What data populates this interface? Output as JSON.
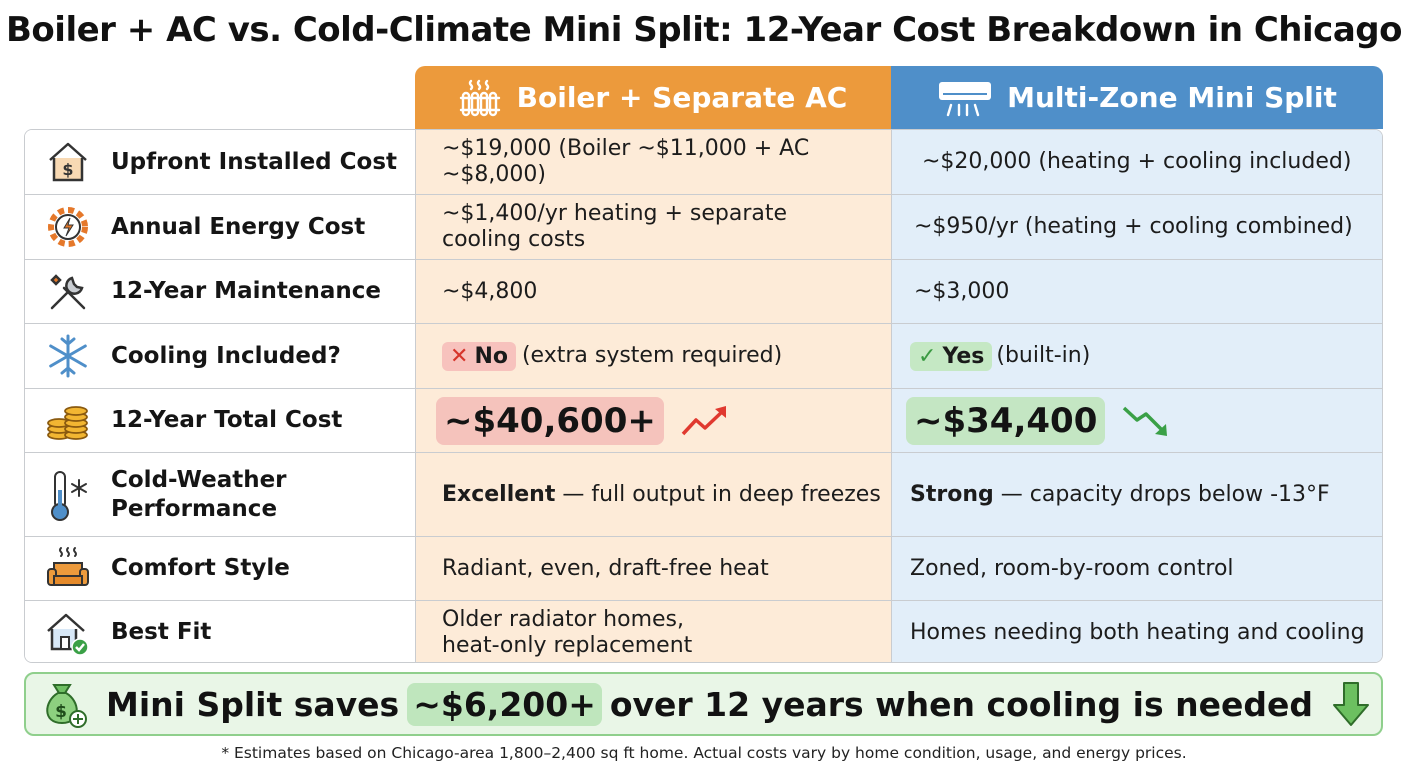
{
  "title": "Boiler + AC vs. Cold-Climate Mini Split: 12-Year Cost Breakdown in Chicago",
  "columns": {
    "boiler": {
      "label": "Boiler + Separate AC",
      "icon": "radiator-icon",
      "color": "#ec9a3c"
    },
    "mini": {
      "label": "Multi-Zone Mini Split",
      "icon": "wall-ac-unit-icon",
      "color": "#4f8fc9"
    }
  },
  "rows": [
    {
      "label": "Upfront Installed Cost",
      "icon": "house-dollar-icon",
      "boiler": "~$19,000 (Boiler ~$11,000 + AC ~$8,000)",
      "mini": "~$20,000 (heating + cooling included)"
    },
    {
      "label": "Annual Energy Cost",
      "icon": "energy-gear-icon",
      "boiler_line1": "~$1,400/yr heating + separate",
      "boiler_line2": "cooling costs",
      "mini": "~$950/yr (heating + cooling combined)"
    },
    {
      "label": "12-Year Maintenance",
      "icon": "wrench-screwdriver-icon",
      "boiler": "~$4,800",
      "mini": "~$3,000"
    },
    {
      "label": "Cooling Included?",
      "icon": "snowflake-icon",
      "boiler_badge": "No",
      "boiler_rest": "(extra system required)",
      "mini_badge": "Yes",
      "mini_rest": "(built-in)"
    },
    {
      "label": "12-Year Total Cost",
      "icon": "coin-stack-icon",
      "boiler": "~$40,600+",
      "boiler_trend": "trend-up-icon",
      "mini": "~$34,400",
      "mini_trend": "trend-down-icon"
    },
    {
      "label_line1": "Cold-Weather",
      "label_line2": "Performance",
      "icon": "thermometer-snow-icon",
      "boiler_bold": "Excellent",
      "boiler_rest": "— full output in deep freezes",
      "mini_bold": "Strong",
      "mini_rest": "— capacity drops below -13°F"
    },
    {
      "label": "Comfort Style",
      "icon": "armchair-heat-icon",
      "boiler": "Radiant, even, draft-free heat",
      "mini": "Zoned, room-by-room control"
    },
    {
      "label": "Best Fit",
      "icon": "house-check-icon",
      "boiler_line1": "Older radiator homes,",
      "boiler_line2": "heat-only replacement",
      "mini": "Homes needing both heating and cooling"
    }
  ],
  "banner": {
    "prefix": "Mini Split saves",
    "amount": "~$6,200+",
    "suffix": "over 12 years when cooling is needed",
    "icon_left": "money-bag-icon",
    "icon_right": "down-arrow-icon"
  },
  "footnote": "* Estimates based on Chicago-area 1,800–2,400 sq ft home. Actual costs vary by home condition, usage, and energy prices."
}
